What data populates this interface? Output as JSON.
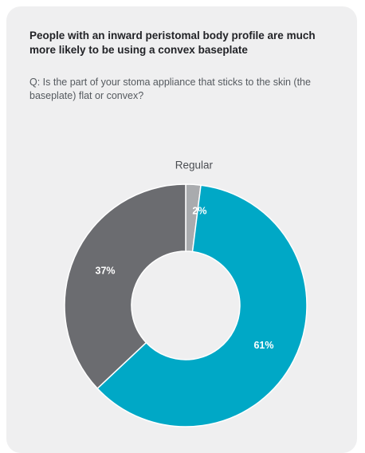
{
  "card": {
    "headline": "People with an inward peristomal body profile are much more likely to be using a convex baseplate",
    "question": "Q: Is the part of your stoma appliance that sticks to the skin (the baseplate) flat or convex?"
  },
  "chart_data": {
    "type": "pie",
    "style": "donut",
    "slices": [
      {
        "label": "Regular",
        "value": 2,
        "value_label": "2%",
        "color": "#a9abae"
      },
      {
        "label": "",
        "value": 61,
        "value_label": "61%",
        "color": "#00a8c6"
      },
      {
        "label": "",
        "value": 37,
        "value_label": "37%",
        "color": "#6b6c70"
      }
    ]
  }
}
